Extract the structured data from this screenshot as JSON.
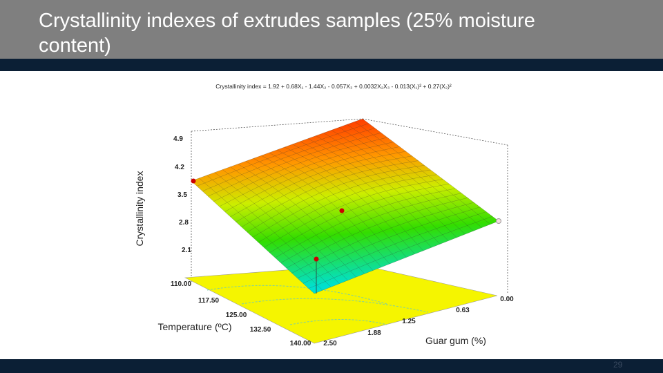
{
  "slide": {
    "title": "Crystallinity indexes of extrudes samples (25% moisture content)",
    "page_number": "29",
    "figure": {
      "equation": "Crystallinity index = 1.92 + 0.68X₁ - 1.44X₂ - 0.057X₃ + 0.0032X₂X₃ - 0.013(X₁)² + 0.27(X₂)²",
      "z_label": "Crystallinity index",
      "z_ticks": [
        "4.9",
        "4.2",
        "3.5",
        "2.8",
        "2.1"
      ],
      "x_label": "Temperature (ºC)",
      "x_ticks": [
        "110.00",
        "117.50",
        "125.00",
        "132.50",
        "140.00"
      ],
      "y_label": "Guar gum (%)",
      "y_ticks": [
        "2.50",
        "1.88",
        "1.25",
        "0.63",
        "0.00"
      ]
    }
  }
}
